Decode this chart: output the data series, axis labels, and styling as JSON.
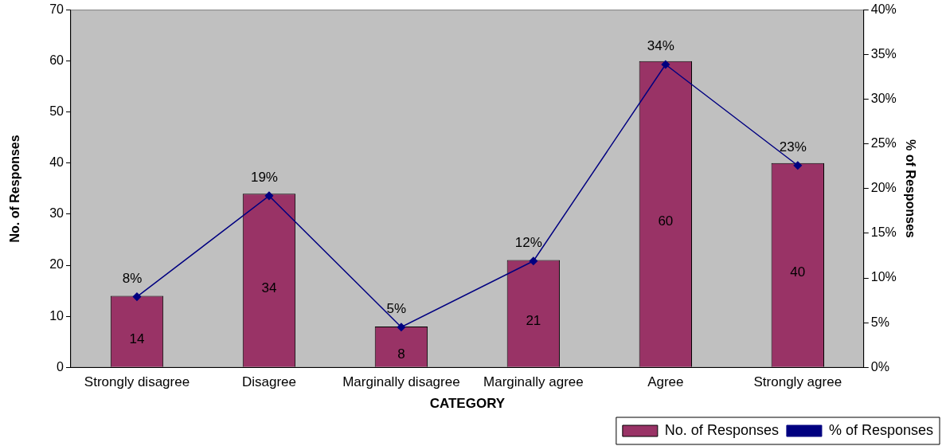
{
  "chart_data": {
    "type": "bar",
    "xlabel": "CATEGORY",
    "ylabel": "No. of Responses",
    "y2label": "% of Responses",
    "categories": [
      "Strongly disagree",
      "Disagree",
      "Marginally disagree",
      "Marginally agree",
      "Agree",
      "Strongly agree"
    ],
    "series": [
      {
        "name": "No. of Responses",
        "color": "#993366",
        "values": [
          14,
          34,
          8,
          21,
          60,
          40
        ],
        "value_labels": [
          "14",
          "34",
          "8",
          "21",
          "60",
          "40"
        ]
      },
      {
        "name": "% of Responses",
        "type": "line",
        "axis": "y2",
        "color": "#000080",
        "marker": "diamond",
        "values": [
          7.9,
          19.2,
          4.5,
          11.9,
          33.9,
          22.6
        ],
        "value_labels": [
          "8%",
          "19%",
          "5%",
          "12%",
          "34%",
          "23%"
        ]
      }
    ],
    "ylim": [
      0,
      70
    ],
    "yticks": [
      0,
      10,
      20,
      30,
      40,
      50,
      60,
      70
    ],
    "y2lim": [
      0,
      40
    ],
    "y2ticks": [
      {
        "value": 0,
        "label": "0%"
      },
      {
        "value": 5,
        "label": "5%"
      },
      {
        "value": 10,
        "label": "10%"
      },
      {
        "value": 15,
        "label": "15%"
      },
      {
        "value": 20,
        "label": "20%"
      },
      {
        "value": 25,
        "label": "25%"
      },
      {
        "value": 30,
        "label": "30%"
      },
      {
        "value": 35,
        "label": "35%"
      },
      {
        "value": 40,
        "label": "40%"
      }
    ],
    "grid": false,
    "legend": "bottom right"
  }
}
